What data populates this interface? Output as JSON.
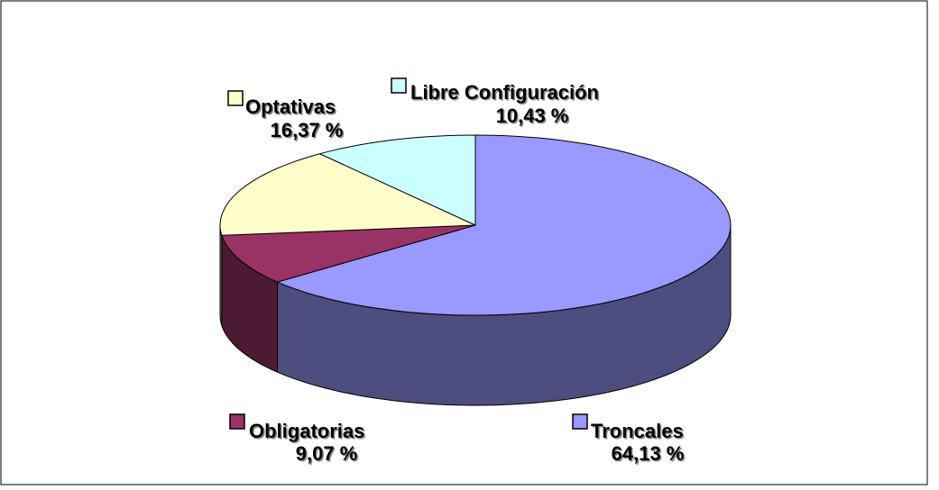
{
  "chart_data": {
    "type": "pie3d",
    "categories": [
      "Troncales",
      "Obligatorias",
      "Optativas",
      "Libre Configuración"
    ],
    "values": [
      64.13,
      9.07,
      16.37,
      10.43
    ],
    "value_labels": [
      "64,13 %",
      "9,07 %",
      "16,37 %",
      "10,43 %"
    ],
    "colors": [
      "#9999ff",
      "#993366",
      "#ffffcc",
      "#ccffff"
    ]
  }
}
